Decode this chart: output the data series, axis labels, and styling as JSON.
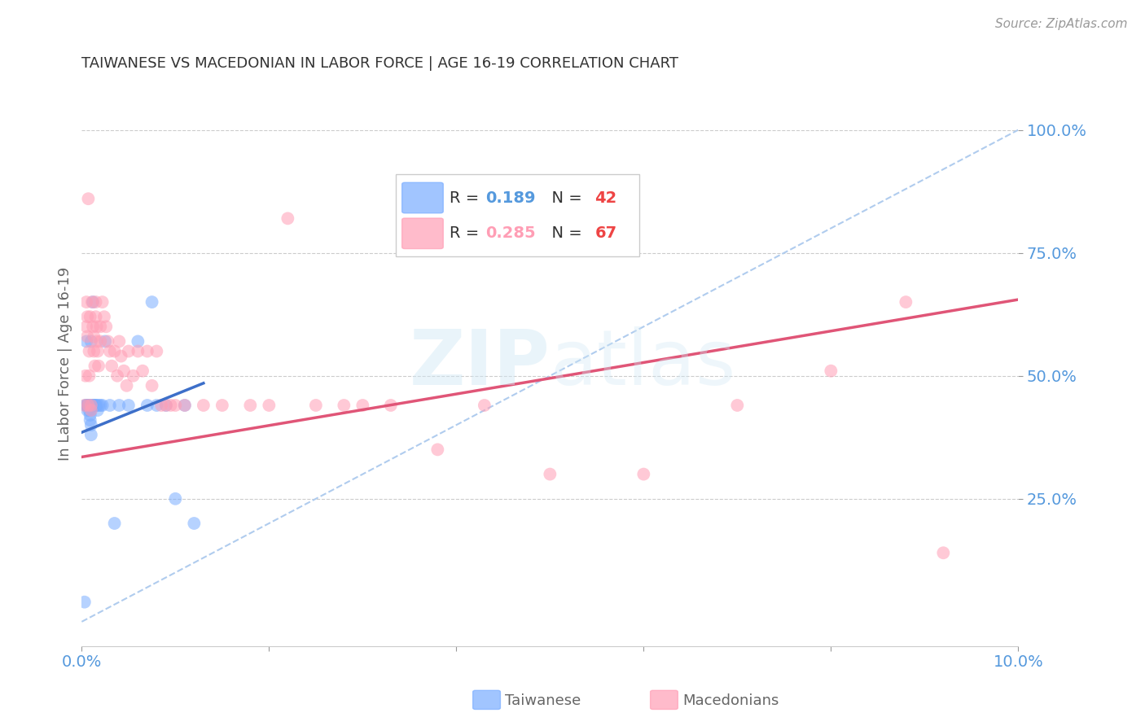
{
  "title": "TAIWANESE VS MACEDONIAN IN LABOR FORCE | AGE 16-19 CORRELATION CHART",
  "source": "Source: ZipAtlas.com",
  "ylabel": "In Labor Force | Age 16-19",
  "xlim": [
    0.0,
    0.1
  ],
  "ylim": [
    -0.05,
    1.1
  ],
  "taiwan_R": 0.189,
  "taiwan_N": 42,
  "mac_R": 0.285,
  "mac_N": 67,
  "taiwan_color": "#7aadff",
  "mac_color": "#ff9eb5",
  "taiwan_line_color": "#3d6fc9",
  "mac_line_color": "#e05577",
  "dashed_line_color": "#b0ccee",
  "tick_color": "#5599dd",
  "grid_color": "#cccccc",
  "tw_x": [
    0.0003,
    0.0004,
    0.0005,
    0.0005,
    0.0006,
    0.0006,
    0.0007,
    0.0007,
    0.0008,
    0.0008,
    0.0009,
    0.0009,
    0.001,
    0.001,
    0.001,
    0.001,
    0.001,
    0.0011,
    0.0012,
    0.0012,
    0.0013,
    0.0013,
    0.0014,
    0.0015,
    0.0016,
    0.0017,
    0.0018,
    0.002,
    0.0022,
    0.0025,
    0.003,
    0.0035,
    0.004,
    0.005,
    0.006,
    0.007,
    0.0075,
    0.008,
    0.009,
    0.01,
    0.011,
    0.012
  ],
  "tw_y": [
    0.04,
    0.44,
    0.44,
    0.57,
    0.44,
    0.43,
    0.44,
    0.44,
    0.44,
    0.43,
    0.42,
    0.41,
    0.57,
    0.44,
    0.43,
    0.4,
    0.38,
    0.44,
    0.65,
    0.44,
    0.44,
    0.44,
    0.44,
    0.44,
    0.44,
    0.43,
    0.44,
    0.44,
    0.44,
    0.57,
    0.44,
    0.2,
    0.44,
    0.44,
    0.57,
    0.44,
    0.65,
    0.44,
    0.44,
    0.25,
    0.44,
    0.2
  ],
  "mac_x": [
    0.0003,
    0.0004,
    0.0005,
    0.0005,
    0.0006,
    0.0006,
    0.0007,
    0.0007,
    0.0008,
    0.0008,
    0.0009,
    0.001,
    0.001,
    0.0011,
    0.0012,
    0.0013,
    0.0013,
    0.0014,
    0.0015,
    0.0015,
    0.0016,
    0.0016,
    0.0017,
    0.0018,
    0.002,
    0.002,
    0.0022,
    0.0024,
    0.0026,
    0.0028,
    0.003,
    0.0032,
    0.0035,
    0.0038,
    0.004,
    0.0042,
    0.0045,
    0.0048,
    0.005,
    0.0055,
    0.006,
    0.0065,
    0.007,
    0.0075,
    0.008,
    0.0085,
    0.009,
    0.0095,
    0.01,
    0.011,
    0.013,
    0.015,
    0.018,
    0.02,
    0.022,
    0.025,
    0.028,
    0.03,
    0.033,
    0.038,
    0.043,
    0.05,
    0.06,
    0.07,
    0.08,
    0.088,
    0.092
  ],
  "mac_y": [
    0.44,
    0.5,
    0.6,
    0.65,
    0.62,
    0.58,
    0.86,
    0.44,
    0.55,
    0.5,
    0.62,
    0.44,
    0.43,
    0.65,
    0.6,
    0.58,
    0.55,
    0.52,
    0.65,
    0.62,
    0.6,
    0.57,
    0.55,
    0.52,
    0.6,
    0.57,
    0.65,
    0.62,
    0.6,
    0.57,
    0.55,
    0.52,
    0.55,
    0.5,
    0.57,
    0.54,
    0.51,
    0.48,
    0.55,
    0.5,
    0.55,
    0.51,
    0.55,
    0.48,
    0.55,
    0.44,
    0.44,
    0.44,
    0.44,
    0.44,
    0.44,
    0.44,
    0.44,
    0.44,
    0.82,
    0.44,
    0.44,
    0.44,
    0.44,
    0.35,
    0.44,
    0.3,
    0.3,
    0.44,
    0.51,
    0.65,
    0.14
  ]
}
